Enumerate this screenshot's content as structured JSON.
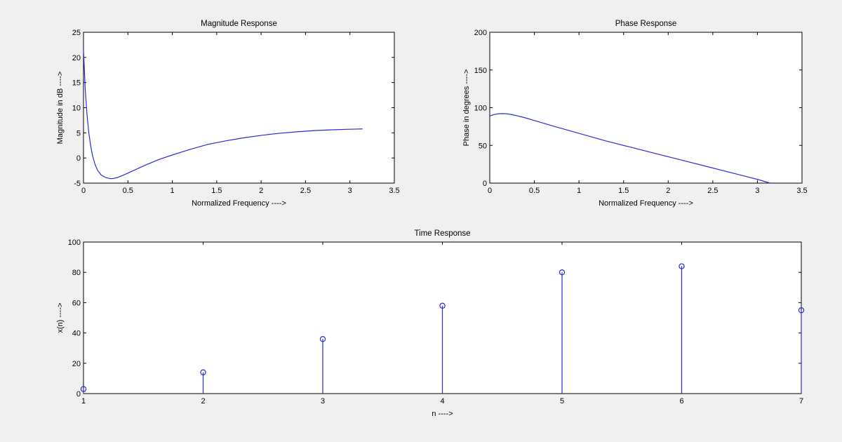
{
  "figure": {
    "background": "#f0f0f0",
    "line_color": "#2a2ad6"
  },
  "chart_data": [
    {
      "id": "magnitude",
      "type": "line",
      "title": "Magnitude Response",
      "xlabel": "Normalized Frequency ---->",
      "ylabel": "Magnitude in dB ---->",
      "xlim": [
        0,
        3.5
      ],
      "ylim": [
        -5,
        25
      ],
      "xticks": [
        0,
        0.5,
        1,
        1.5,
        2,
        2.5,
        3,
        3.5
      ],
      "xtick_labels": [
        "0",
        "0.5",
        "1",
        "1.5",
        "2",
        "2.5",
        "3",
        "3.5"
      ],
      "yticks": [
        -5,
        0,
        5,
        10,
        15,
        20,
        25
      ],
      "ytick_labels": [
        "-5",
        "0",
        "5",
        "10",
        "15",
        "20",
        "25"
      ],
      "grid": false,
      "series": [
        {
          "x": [
            0,
            0.01,
            0.02,
            0.04,
            0.06,
            0.08,
            0.1,
            0.13,
            0.16,
            0.2,
            0.25,
            0.3,
            0.33,
            0.38,
            0.45,
            0.55,
            0.7,
            0.85,
            1.0,
            1.2,
            1.4,
            1.6,
            1.8,
            2.0,
            2.2,
            2.4,
            2.6,
            2.8,
            3.0,
            3.1416
          ],
          "y": [
            21.5,
            17.5,
            13.5,
            8.5,
            5.0,
            2.5,
            0.6,
            -1.3,
            -2.5,
            -3.4,
            -3.9,
            -4.1,
            -4.1,
            -3.9,
            -3.4,
            -2.6,
            -1.4,
            -0.3,
            0.6,
            1.7,
            2.7,
            3.4,
            4.0,
            4.5,
            4.9,
            5.2,
            5.45,
            5.6,
            5.72,
            5.78
          ]
        }
      ]
    },
    {
      "id": "phase",
      "type": "line",
      "title": "Phase Response",
      "xlabel": "Normalized Frequency ---->",
      "ylabel": "Phase in degrees ---->",
      "xlim": [
        0,
        3.5
      ],
      "ylim": [
        0,
        200
      ],
      "xticks": [
        0,
        0.5,
        1,
        1.5,
        2,
        2.5,
        3,
        3.5
      ],
      "xtick_labels": [
        "0",
        "0.5",
        "1",
        "1.5",
        "2",
        "2.5",
        "3",
        "3.5"
      ],
      "yticks": [
        0,
        50,
        100,
        150,
        200
      ],
      "ytick_labels": [
        "0",
        "50",
        "100",
        "150",
        "200"
      ],
      "grid": false,
      "series": [
        {
          "x": [
            0,
            0.05,
            0.1,
            0.15,
            0.2,
            0.25,
            0.3,
            0.4,
            0.5,
            0.7,
            1.0,
            1.3,
            1.6,
            1.9,
            2.2,
            2.5,
            2.8,
            3.0,
            3.1416
          ],
          "y": [
            89,
            91,
            92,
            92.2,
            91.8,
            90.8,
            89.5,
            86.5,
            83,
            76,
            66,
            56,
            47,
            38,
            29,
            20,
            11,
            5,
            0
          ]
        }
      ]
    },
    {
      "id": "time",
      "type": "stem",
      "title": "Time Response",
      "xlabel": "n ---->",
      "ylabel": "x(n) ---->",
      "xlim": [
        1,
        7
      ],
      "ylim": [
        0,
        100
      ],
      "xticks": [
        1,
        2,
        3,
        4,
        5,
        6,
        7
      ],
      "xtick_labels": [
        "1",
        "2",
        "3",
        "4",
        "5",
        "6",
        "7"
      ],
      "yticks": [
        0,
        20,
        40,
        60,
        80,
        100
      ],
      "ytick_labels": [
        "0",
        "20",
        "40",
        "60",
        "80",
        "100"
      ],
      "grid": false,
      "series": [
        {
          "x": [
            1,
            2,
            3,
            4,
            5,
            6,
            7
          ],
          "y": [
            3,
            14,
            36,
            58,
            80,
            84,
            55
          ]
        }
      ]
    }
  ]
}
